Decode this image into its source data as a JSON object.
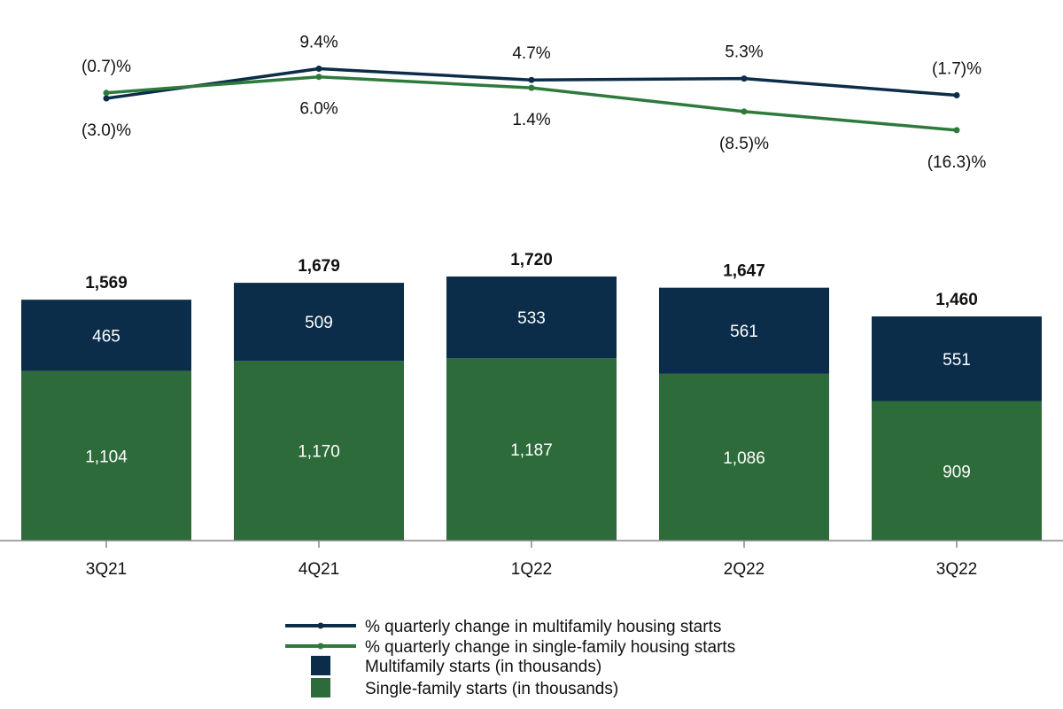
{
  "chart_data": {
    "type": "bar",
    "stacked": true,
    "categories": [
      "3Q21",
      "4Q21",
      "1Q22",
      "2Q22",
      "3Q22"
    ],
    "series": [
      {
        "name": "Single-family starts (in thousands)",
        "values": [
          1104,
          1170,
          1187,
          1086,
          909
        ],
        "labels": [
          "1,104",
          "1,170",
          "1,187",
          "1,086",
          "909"
        ],
        "color": "#2e6b3a"
      },
      {
        "name": "Multifamily starts (in thousands)",
        "values": [
          465,
          509,
          533,
          561,
          551
        ],
        "labels": [
          "465",
          "509",
          "533",
          "561",
          "551"
        ],
        "color": "#0b2d4a"
      }
    ],
    "totals": [
      1569,
      1679,
      1720,
      1647,
      1460
    ],
    "total_labels": [
      "1,569",
      "1,679",
      "1,720",
      "1,647",
      "1,460"
    ],
    "ylim": [
      0,
      1720
    ],
    "lines": [
      {
        "name": "% quarterly change in multifamily housing starts",
        "values": [
          -3.0,
          9.4,
          4.7,
          5.3,
          -1.7
        ],
        "labels": [
          "(3.0)%",
          "9.4%",
          "4.7%",
          "5.3%",
          "(1.7)%"
        ],
        "color": "#0b2d4a"
      },
      {
        "name": "% quarterly change in single-family housing starts",
        "values": [
          -0.7,
          6.0,
          1.4,
          -8.5,
          -16.3
        ],
        "labels": [
          "(0.7)%",
          "6.0%",
          "1.4%",
          "(8.5)%",
          "(16.3)%"
        ],
        "color": "#2e7a3c"
      }
    ],
    "legend_position": "bottom-center",
    "grid": false
  }
}
